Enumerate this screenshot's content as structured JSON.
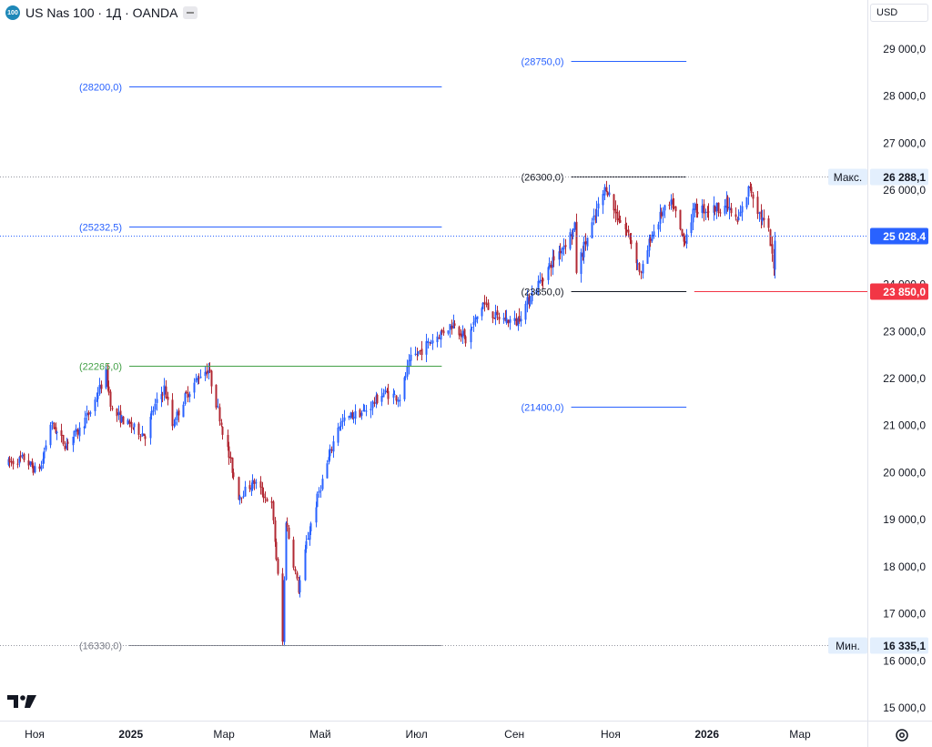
{
  "header": {
    "symbol_badge": "100",
    "title": "US Nas 100 · 1Д · OANDA"
  },
  "currency_button": "USD",
  "colors": {
    "up": "#2962ff",
    "down": "#b22833",
    "fib_blue": "#2962ff",
    "fib_green": "#43a047",
    "fib_black": "#131722",
    "fib_gray": "#787b86",
    "price_tag": "#2962ff",
    "alert": "#f23645",
    "grid": "#e0e3eb"
  },
  "chart_data": {
    "type": "candlestick",
    "y_axis": {
      "min": 14700,
      "max": 29600,
      "ticks": [
        15000,
        16000,
        17000,
        18000,
        19000,
        20000,
        21000,
        22000,
        23000,
        24000,
        25000,
        26000,
        27000,
        28000,
        29000
      ],
      "tick_labels": [
        "15 000,0",
        "16 000,0",
        "17 000,0",
        "18 000,0",
        "19 000,0",
        "20 000,0",
        "21 000,0",
        "22 000,0",
        "23 000,0",
        "24 000,0",
        "25 000,0",
        "26 000,0",
        "27 000,0",
        "28 000,0",
        "29 000,0"
      ]
    },
    "x_axis": {
      "labels": [
        "Ноя",
        "2025",
        "Мар",
        "Май",
        "Июл",
        "Сен",
        "Ноя",
        "2026",
        "Мар"
      ],
      "bold": [
        false,
        true,
        false,
        false,
        false,
        false,
        false,
        true,
        false
      ],
      "dates": [
        "2024-11-01",
        "2025-01-01",
        "2025-03-01",
        "2025-05-01",
        "2025-07-01",
        "2025-09-01",
        "2025-11-01",
        "2026-01-01",
        "2026-03-01"
      ]
    },
    "price_path": [
      [
        "2024-10-15",
        20200
      ],
      [
        "2024-10-25",
        20300
      ],
      [
        "2024-11-01",
        20050
      ],
      [
        "2024-11-05",
        20150
      ],
      [
        "2024-11-11",
        21050
      ],
      [
        "2024-11-20",
        20600
      ],
      [
        "2024-11-29",
        20900
      ],
      [
        "2024-12-06",
        21300
      ],
      [
        "2024-12-16",
        22100
      ],
      [
        "2024-12-20",
        21300
      ],
      [
        "2024-12-31",
        21000
      ],
      [
        "2025-01-10",
        20800
      ],
      [
        "2025-01-15",
        21350
      ],
      [
        "2025-01-22",
        21800
      ],
      [
        "2025-01-27",
        21000
      ],
      [
        "2025-02-04",
        21600
      ],
      [
        "2025-02-14",
        22100
      ],
      [
        "2025-02-19",
        22200
      ],
      [
        "2025-02-28",
        20900
      ],
      [
        "2025-03-10",
        19500
      ],
      [
        "2025-03-20",
        19800
      ],
      [
        "2025-03-31",
        19300
      ],
      [
        "2025-04-04",
        17800
      ],
      [
        "2025-04-07",
        16400
      ],
      [
        "2025-04-09",
        19000
      ],
      [
        "2025-04-17",
        17500
      ],
      [
        "2025-04-22",
        18500
      ],
      [
        "2025-04-30",
        19600
      ],
      [
        "2025-05-12",
        21000
      ],
      [
        "2025-05-20",
        21200
      ],
      [
        "2025-05-29",
        21300
      ],
      [
        "2025-06-10",
        21700
      ],
      [
        "2025-06-20",
        21600
      ],
      [
        "2025-06-27",
        22400
      ],
      [
        "2025-07-10",
        22800
      ],
      [
        "2025-07-25",
        23200
      ],
      [
        "2025-08-01",
        22800
      ],
      [
        "2025-08-12",
        23600
      ],
      [
        "2025-08-20",
        23300
      ],
      [
        "2025-09-02",
        23200
      ],
      [
        "2025-09-12",
        23800
      ],
      [
        "2025-09-25",
        24500
      ],
      [
        "2025-10-09",
        25200
      ],
      [
        "2025-10-10",
        24300
      ],
      [
        "2025-10-15",
        24800
      ],
      [
        "2025-10-29",
        26100
      ],
      [
        "2025-11-04",
        25500
      ],
      [
        "2025-11-13",
        25000
      ],
      [
        "2025-11-20",
        24200
      ],
      [
        "2025-11-26",
        25000
      ],
      [
        "2025-12-03",
        25500
      ],
      [
        "2025-12-10",
        25700
      ],
      [
        "2025-12-17",
        24900
      ],
      [
        "2025-12-24",
        25600
      ],
      [
        "2026-01-05",
        25600
      ],
      [
        "2026-01-13",
        25700
      ],
      [
        "2026-01-20",
        25300
      ],
      [
        "2026-01-28",
        26100
      ],
      [
        "2026-02-03",
        25500
      ],
      [
        "2026-02-09",
        25100
      ],
      [
        "2026-02-12",
        24300
      ],
      [
        "2026-02-13",
        25028
      ]
    ],
    "series_last": 25028.4,
    "fibonacci": [
      {
        "label": "(28200,0)",
        "price": 28200,
        "color": "blue"
      },
      {
        "label": "(25232,5)",
        "price": 25232.5,
        "color": "blue"
      },
      {
        "label": "(22265,0)",
        "price": 22265,
        "color": "green"
      },
      {
        "label": "(16330,0)",
        "price": 16330,
        "color": "gray"
      },
      {
        "label": "(28750,0)",
        "price": 28750,
        "color": "blue"
      },
      {
        "label": "(26300,0)",
        "price": 26300,
        "color": "black"
      },
      {
        "label": "(23850,0)",
        "price": 23850,
        "color": "black"
      },
      {
        "label": "(21400,0)",
        "price": 21400,
        "color": "blue"
      }
    ],
    "fib_left": {
      "start": "2024-12-31",
      "end": "2025-07-17"
    },
    "fib_right": {
      "start": "2025-10-07",
      "end": "2025-12-19"
    },
    "high": {
      "label": "Макс.",
      "value": 26288.1,
      "text": "26 288,1"
    },
    "low": {
      "label": "Мин.",
      "value": 16335.1,
      "text": "16 335,1"
    },
    "last": {
      "value": 25028.4,
      "text": "25 028,4"
    },
    "alert": {
      "value": 23850,
      "text": "23 850,0"
    }
  }
}
